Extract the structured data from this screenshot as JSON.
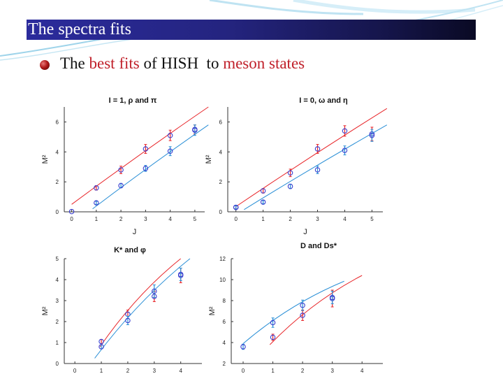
{
  "slide": {
    "title": "The spectra fits",
    "subtitle_parts": [
      "The ",
      "best fits",
      " of HISH  to ",
      "meson states"
    ]
  },
  "colors": {
    "red": "#e8262a",
    "blue": "#2a8fd6",
    "marker": "#3a3fd0",
    "title_bar": "#24247f",
    "subtitle_accent": "#c0202a"
  },
  "chart_data": [
    {
      "type": "scatter",
      "title": "I = 1, ρ and π",
      "xlabel": "J",
      "ylabel": "M²",
      "xlim": [
        -0.3,
        5.4
      ],
      "ylim": [
        0,
        7
      ],
      "xticks": [
        0,
        1,
        2,
        3,
        4,
        5
      ],
      "yticks": [
        0,
        2,
        4,
        6
      ],
      "series": [
        {
          "color": "red",
          "points": [
            [
              0,
              0.02,
              0.0
            ],
            [
              1,
              1.6,
              0.15
            ],
            [
              2,
              2.8,
              0.25
            ],
            [
              3,
              4.2,
              0.3
            ],
            [
              4,
              5.1,
              0.35
            ],
            [
              5,
              5.5,
              0.3
            ]
          ],
          "fit": [
            [
              0,
              0.5
            ],
            [
              5.55,
              7.0
            ]
          ]
        },
        {
          "color": "blue",
          "points": [
            [
              1,
              0.6,
              0.1
            ],
            [
              2,
              1.75,
              0.15
            ],
            [
              3,
              2.9,
              0.2
            ],
            [
              4,
              4.05,
              0.3
            ],
            [
              5,
              5.45,
              0.35
            ]
          ],
          "fit": [
            [
              0.85,
              0.2
            ],
            [
              5.55,
              5.8
            ]
          ]
        }
      ]
    },
    {
      "type": "scatter",
      "title": "I = 0, ω and η",
      "xlabel": "J",
      "ylabel": "M²",
      "xlim": [
        -0.3,
        5.4
      ],
      "ylim": [
        0,
        7
      ],
      "xticks": [
        0,
        1,
        2,
        3,
        4,
        5
      ],
      "yticks": [
        0,
        2,
        4,
        6
      ],
      "series": [
        {
          "color": "red",
          "points": [
            [
              0,
              0.3,
              0.1
            ],
            [
              1,
              1.4,
              0.15
            ],
            [
              2,
              2.6,
              0.25
            ],
            [
              3,
              4.2,
              0.3
            ],
            [
              4,
              5.4,
              0.35
            ],
            [
              5,
              5.2,
              0.45
            ]
          ],
          "fit": [
            [
              0,
              0.35
            ],
            [
              5.55,
              6.9
            ]
          ]
        },
        {
          "color": "blue",
          "points": [
            [
              0,
              0.3,
              0.1
            ],
            [
              1,
              0.65,
              0.1
            ],
            [
              2,
              1.7,
              0.15
            ],
            [
              3,
              2.8,
              0.25
            ],
            [
              4,
              4.1,
              0.3
            ],
            [
              5,
              5.1,
              0.4
            ]
          ],
          "fit": [
            [
              0.3,
              0.15
            ],
            [
              5.55,
              5.8
            ]
          ]
        }
      ]
    },
    {
      "type": "scatter",
      "title": "K* and φ",
      "xlabel": "",
      "ylabel": "M²",
      "xlim": [
        -0.4,
        4.8
      ],
      "ylim": [
        0,
        5
      ],
      "xticks": [
        0,
        1,
        2,
        3,
        4
      ],
      "yticks": [
        0,
        1,
        2,
        3,
        4,
        5
      ],
      "series": [
        {
          "color": "red",
          "points": [
            [
              1,
              1.05,
              0.1
            ],
            [
              2,
              2.35,
              0.2
            ],
            [
              3,
              3.2,
              0.25
            ],
            [
              4,
              4.2,
              0.35
            ]
          ],
          "fit": [
            [
              0.95,
              0.8
            ],
            [
              4.0,
              5.0
            ]
          ]
        },
        {
          "color": "blue",
          "points": [
            [
              1,
              0.8,
              0.1
            ],
            [
              2,
              2.05,
              0.2
            ],
            [
              3,
              3.45,
              0.3
            ],
            [
              4,
              4.25,
              0.3
            ]
          ],
          "fit": [
            [
              0.75,
              0.25
            ],
            [
              4.35,
              5.0
            ]
          ]
        }
      ]
    },
    {
      "type": "scatter",
      "title": "D and Ds*",
      "xlabel": "",
      "ylabel": "M²",
      "xlim": [
        -0.4,
        4.7
      ],
      "ylim": [
        2,
        12
      ],
      "xticks": [
        0,
        1,
        2,
        3,
        4
      ],
      "yticks": [
        2,
        4,
        6,
        8,
        10,
        12
      ],
      "series": [
        {
          "color": "red",
          "points": [
            [
              1,
              4.5,
              0.3
            ],
            [
              2,
              6.6,
              0.5
            ],
            [
              3,
              8.2,
              0.8
            ]
          ],
          "fit": [
            [
              0.9,
              3.8
            ],
            [
              4.0,
              10.4
            ]
          ]
        },
        {
          "color": "blue",
          "points": [
            [
              0,
              3.6,
              0.25
            ],
            [
              1,
              5.9,
              0.45
            ],
            [
              2,
              7.55,
              0.5
            ],
            [
              3,
              8.3,
              0.6
            ]
          ],
          "fit": [
            [
              0.0,
              3.9
            ],
            [
              3.4,
              9.85
            ]
          ]
        }
      ]
    }
  ]
}
